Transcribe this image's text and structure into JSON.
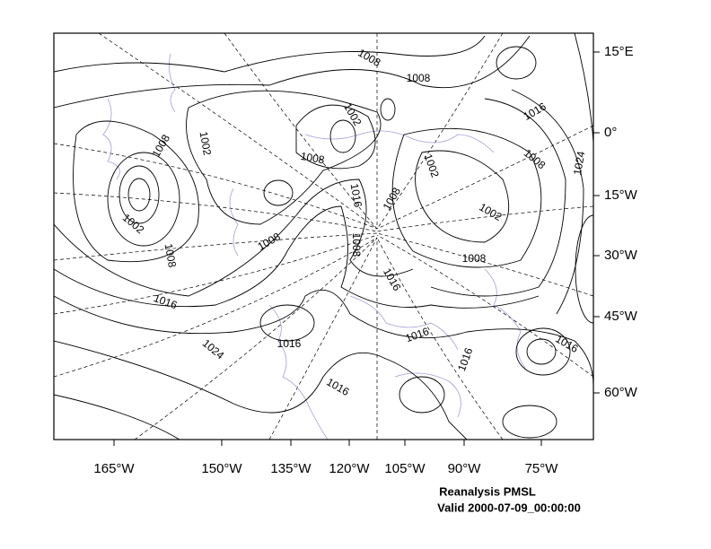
{
  "map": {
    "lon_labels": [
      "165°W",
      "150°W",
      "135°W",
      "120°W",
      "105°W",
      "90°W",
      "75°W"
    ],
    "lat_labels": [
      "15°E",
      "0°",
      "15°W",
      "30°W",
      "45°W",
      "60°W"
    ],
    "contour_labels": [
      "1008",
      "1008",
      "1002",
      "1016",
      "1008",
      "1002",
      "1008",
      "1002",
      "1008",
      "1024",
      "1016",
      "1008",
      "1002",
      "1002",
      "1008",
      "1008",
      "1008",
      "1008",
      "1016",
      "1016",
      "1016",
      "1016",
      "1024",
      "1016",
      "1016",
      "1016"
    ],
    "title": "Reanalysis PMSL",
    "valid": "Valid 2000-07-09_00:00:00"
  }
}
